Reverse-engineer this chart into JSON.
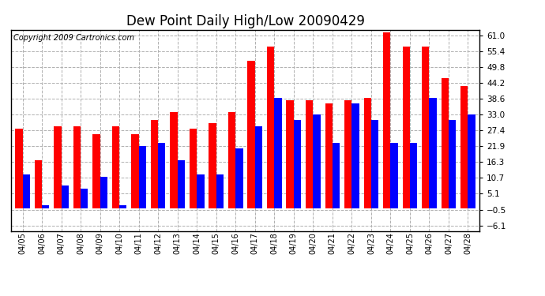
{
  "title": "Dew Point Daily High/Low 20090429",
  "copyright": "Copyright 2009 Cartronics.com",
  "dates": [
    "04/05",
    "04/06",
    "04/07",
    "04/08",
    "04/09",
    "04/10",
    "04/11",
    "04/12",
    "04/13",
    "04/14",
    "04/15",
    "04/16",
    "04/17",
    "04/18",
    "04/19",
    "04/20",
    "04/21",
    "04/22",
    "04/23",
    "04/24",
    "04/25",
    "04/26",
    "04/27",
    "04/28"
  ],
  "highs": [
    28,
    17,
    29,
    29,
    26,
    29,
    26,
    31,
    34,
    28,
    30,
    34,
    52,
    57,
    38,
    38,
    37,
    38,
    39,
    62,
    57,
    57,
    46,
    43
  ],
  "lows": [
    12,
    1,
    8,
    7,
    11,
    1,
    22,
    23,
    17,
    12,
    12,
    21,
    29,
    39,
    31,
    33,
    23,
    37,
    31,
    23,
    23,
    39,
    31,
    33
  ],
  "high_color": "#ff0000",
  "low_color": "#0000ff",
  "bg_color": "#ffffff",
  "grid_color": "#b0b0b0",
  "yticks": [
    -6.1,
    -0.5,
    5.1,
    10.7,
    16.3,
    21.9,
    27.4,
    33.0,
    38.6,
    44.2,
    49.8,
    55.4,
    61.0
  ],
  "ylim": [
    -8,
    63
  ],
  "title_fontsize": 12,
  "copyright_fontsize": 7,
  "fig_width": 6.9,
  "fig_height": 3.75,
  "dpi": 100
}
